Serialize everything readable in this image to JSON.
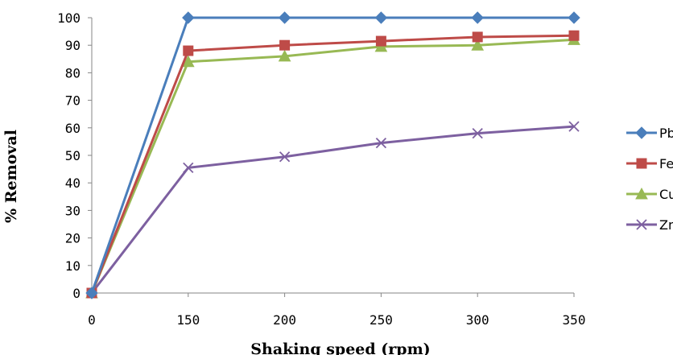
{
  "chart_data": {
    "type": "line",
    "title": "",
    "xlabel": "Shaking speed (rpm)",
    "ylabel": "% Removal",
    "x": [
      0,
      150,
      200,
      250,
      300,
      350
    ],
    "x_tick_labels": [
      "0",
      "150",
      "200",
      "250",
      "300",
      "350"
    ],
    "x_axis_type": "categorical-evenly-spaced",
    "ylim": [
      0,
      100
    ],
    "y_ticks": [
      0,
      10,
      20,
      30,
      40,
      50,
      60,
      70,
      80,
      90,
      100
    ],
    "y_tick_labels": [
      "0",
      "10",
      "20",
      "30",
      "40",
      "50",
      "60",
      "70",
      "80",
      "90",
      "100"
    ],
    "grid": false,
    "legend_position": "right",
    "series": [
      {
        "name": "Pb",
        "values": [
          0,
          100,
          100,
          100,
          100,
          100
        ],
        "color": "#4a7ebb",
        "marker": "diamond"
      },
      {
        "name": "Fe",
        "values": [
          0,
          88,
          90,
          91.5,
          93,
          93.5
        ],
        "color": "#be4b48",
        "marker": "square"
      },
      {
        "name": "Cu",
        "values": [
          0,
          84,
          86,
          89.5,
          90,
          92
        ],
        "color": "#98b954",
        "marker": "triangle"
      },
      {
        "name": "Zn",
        "values": [
          0,
          45.5,
          49.5,
          54.5,
          58,
          60.5
        ],
        "color": "#7d60a0",
        "marker": "x"
      }
    ]
  }
}
